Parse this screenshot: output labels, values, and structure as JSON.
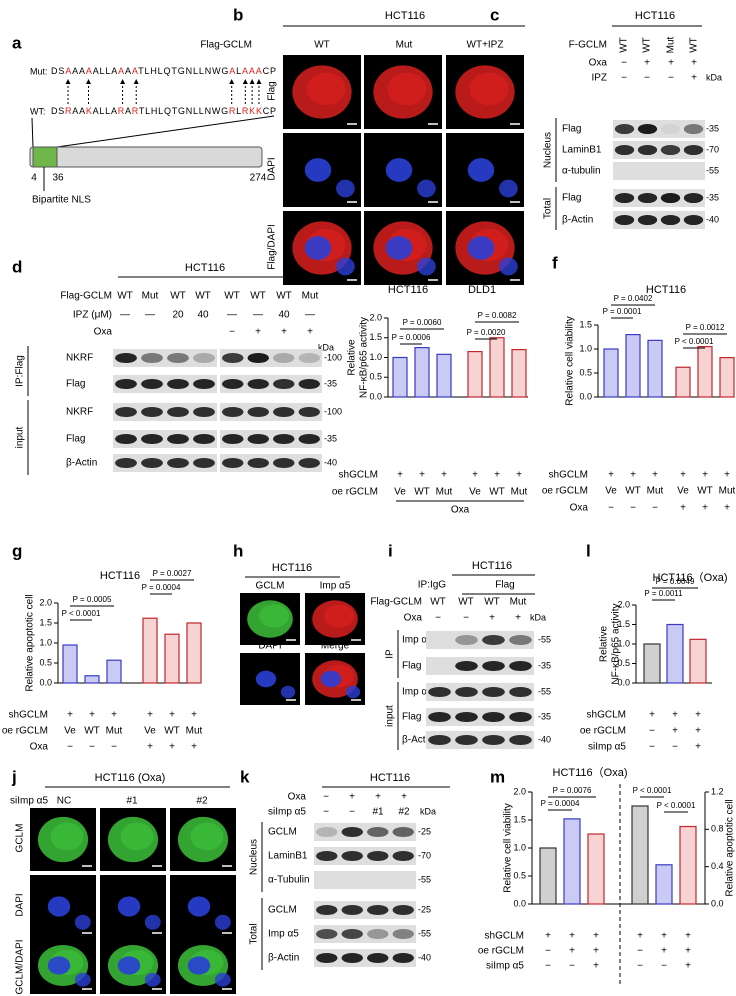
{
  "panel_labels": [
    "a",
    "b",
    "c",
    "d",
    "e",
    "f",
    "g",
    "h",
    "i",
    "l",
    "j",
    "k",
    "m"
  ],
  "a": {
    "mut_label": "Mut:",
    "mut_seq": "DSAAAAALLAAAATLHLQTGNLLNWGALAAACP",
    "wt_label": "WT:",
    "wt_seq": "DSRAAKALLARARTLHLQTGNLLNWGRLRKKCP",
    "positions": [
      "4",
      "36",
      "274"
    ],
    "caption": "Bipartite NLS"
  },
  "b": {
    "title": "HCT116",
    "row_label": "Flag-GCLM",
    "columns": [
      "WT",
      "Mut",
      "WT+IPZ"
    ],
    "rows": [
      "Flag",
      "DAPI",
      "Flag/DAPI"
    ]
  },
  "c": {
    "title": "HCT116",
    "kda": "kDa",
    "conditions": [
      {
        "label": "F-GCLM",
        "values": [
          "WT",
          "WT",
          "Mut",
          "WT"
        ]
      },
      {
        "label": "Oxa",
        "values": [
          "−",
          "+",
          "+",
          "+"
        ]
      },
      {
        "label": "IPZ",
        "values": [
          "−",
          "−",
          "−",
          "+"
        ]
      }
    ],
    "rows": [
      {
        "label": "Flag",
        "kda": "-35"
      },
      {
        "label": "LaminB1",
        "kda": "-70"
      },
      {
        "label": "α-tubulin",
        "kda": "-55"
      },
      {
        "label": "Flag",
        "kda": "-35"
      },
      {
        "label": "β-Actin",
        "kda": "-40"
      }
    ],
    "groups": [
      "Nucleus",
      "Total"
    ]
  },
  "d": {
    "title": "HCT116",
    "kda": "kDa",
    "conditions": [
      {
        "label": "Flag-GCLM",
        "values": [
          "WT",
          "Mut",
          "WT",
          "WT",
          "WT",
          "WT",
          "WT",
          "Mut"
        ]
      },
      {
        "label": "IPZ (μM)",
        "values": [
          "—",
          "—",
          "20",
          "40",
          "—",
          "—",
          "40",
          "—"
        ]
      },
      {
        "label": "Oxa",
        "values": [
          "",
          "",
          "",
          "",
          "−",
          "+",
          "+",
          "+"
        ]
      }
    ],
    "rows": [
      {
        "label": "NKRF",
        "kda": "-100"
      },
      {
        "label": "Flag",
        "kda": "-35"
      },
      {
        "label": "NKRF",
        "kda": "-100"
      },
      {
        "label": "Flag",
        "kda": "-35"
      },
      {
        "label": "β-Actin",
        "kda": "-40"
      }
    ],
    "groups": [
      "IP:Flag",
      "input"
    ]
  },
  "h": {
    "title": "HCT116",
    "images": [
      "GCLM",
      "Imp α5",
      "DAPI",
      "Merge"
    ]
  },
  "i": {
    "title": "HCT116",
    "ip_label": "IP:",
    "ip_groups": [
      "IgG",
      "Flag"
    ],
    "kda": "kDa",
    "conditions": [
      {
        "label": "Flag-GCLM",
        "values": [
          "WT",
          "WT",
          "WT",
          "Mut"
        ]
      },
      {
        "label": "Oxa",
        "values": [
          "−",
          "−",
          "+",
          "+"
        ]
      }
    ],
    "rows": [
      {
        "label": "Imp α5",
        "kda": "-55"
      },
      {
        "label": "Flag",
        "kda": "-35"
      },
      {
        "label": "Imp α5",
        "kda": "-55"
      },
      {
        "label": "Flag",
        "kda": "-35"
      },
      {
        "label": "β-Actin",
        "kda": "-40"
      }
    ],
    "groups": [
      "IP",
      "input"
    ]
  },
  "j": {
    "title": "HCT116 (Oxa)",
    "row_label": "siImp α5",
    "columns": [
      "NC",
      "#1",
      "#2"
    ],
    "rows": [
      "GCLM",
      "DAPI",
      "GCLM/DAPI"
    ]
  },
  "k": {
    "title": "HCT116",
    "kda": "kDa",
    "conditions": [
      {
        "label": "Oxa",
        "values": [
          "−",
          "+",
          "+",
          "+"
        ]
      },
      {
        "label": "siImp α5",
        "values": [
          "−",
          "−",
          "#1",
          "#2"
        ]
      }
    ],
    "rows": [
      {
        "label": "GCLM",
        "kda": "-25"
      },
      {
        "label": "LaminB1",
        "kda": "-70"
      },
      {
        "label": "α-Tubulin",
        "kda": "-55"
      },
      {
        "label": "GCLM",
        "kda": "-25"
      },
      {
        "label": "Imp α5",
        "kda": "-55"
      },
      {
        "label": "β-Actin",
        "kda": "-40"
      }
    ],
    "groups": [
      "Nucleus",
      "Total"
    ]
  },
  "chart_data": [
    {
      "type": "bar",
      "group_titles": [
        "HCT116",
        "DLD1"
      ],
      "ylabel": [
        "Relative",
        "NF-κB/p65 activity"
      ],
      "values": [
        1.0,
        1.25,
        1.08,
        1.15,
        1.5,
        1.2
      ],
      "colors": [
        "#c9cbf4",
        "#c9cbf4",
        "#c9cbf4",
        "#f8d3d3",
        "#f8d3d3",
        "#f8d3d3"
      ],
      "edge_colors": [
        "#3a3ac4",
        "#3a3ac4",
        "#3a3ac4",
        "#c1272d",
        "#c1272d",
        "#c1272d"
      ],
      "ylim": [
        0,
        2
      ],
      "yticks": [
        {
          "value": 0,
          "label": "0.0"
        },
        0.5,
        {
          "value": 1,
          "label": "1.0"
        },
        1.5,
        {
          "value": 2,
          "label": "2.0"
        }
      ],
      "annotations": [
        "P = 0.0006",
        "P = 0.0060",
        "P = 0.0020",
        "P = 0.0082"
      ],
      "conditions": [
        {
          "label": "shGCLM",
          "values": [
            "+",
            "+",
            "+",
            "+",
            "+",
            "+"
          ]
        },
        {
          "label": "oe rGCLM",
          "values": [
            "Ve",
            "WT",
            "Mut",
            "Ve",
            "WT",
            "Mut"
          ]
        }
      ],
      "footnote": "Oxa"
    },
    {
      "type": "bar",
      "title": "HCT116",
      "ylabel": [
        "Relative cell viability"
      ],
      "values": [
        1.0,
        1.3,
        1.18,
        0.62,
        1.05,
        0.82
      ],
      "colors": [
        "#c9cbf4",
        "#c9cbf4",
        "#c9cbf4",
        "#f8d3d3",
        "#f8d3d3",
        "#f8d3d3"
      ],
      "edge_colors": [
        "#3a3ac4",
        "#3a3ac4",
        "#3a3ac4",
        "#c1272d",
        "#c1272d",
        "#c1272d"
      ],
      "ylim": [
        0,
        1.5
      ],
      "yticks": [
        {
          "value": 0,
          "label": "0.0"
        },
        0.5,
        {
          "value": 1,
          "label": "1.0"
        },
        1.5
      ],
      "annotations": [
        "P = 0.0001",
        "P = 0.0402",
        "P < 0.0001",
        "P = 0.0012"
      ],
      "conditions": [
        {
          "label": "shGCLM",
          "values": [
            "+",
            "+",
            "+",
            "+",
            "+",
            "+"
          ]
        },
        {
          "label": "oe rGCLM",
          "values": [
            "Ve",
            "WT",
            "Mut",
            "Ve",
            "WT",
            "Mut"
          ]
        },
        {
          "label": "Oxa",
          "values": [
            "−",
            "−",
            "−",
            "+",
            "+",
            "+"
          ]
        }
      ]
    },
    {
      "type": "bar",
      "title": "HCT116",
      "ylabel": [
        "Relative apoptotic cell"
      ],
      "values": [
        0.95,
        0.18,
        0.57,
        1.62,
        1.22,
        1.5
      ],
      "colors": [
        "#c9cbf4",
        "#c9cbf4",
        "#c9cbf4",
        "#f8d3d3",
        "#f8d3d3",
        "#f8d3d3"
      ],
      "edge_colors": [
        "#3a3ac4",
        "#3a3ac4",
        "#3a3ac4",
        "#c1272d",
        "#c1272d",
        "#c1272d"
      ],
      "ylim": [
        0,
        2
      ],
      "yticks": [
        {
          "value": 0,
          "label": "0.0"
        },
        0.5,
        {
          "value": 1,
          "label": "1.0"
        },
        1.5,
        {
          "value": 2,
          "label": "2.0"
        }
      ],
      "annotations": [
        "P < 0.0001",
        "P = 0.0005",
        "P = 0.0004",
        "P = 0.0027"
      ],
      "conditions": [
        {
          "label": "shGCLM",
          "values": [
            "+",
            "+",
            "+",
            "+",
            "+",
            "+"
          ]
        },
        {
          "label": "oe rGCLM",
          "values": [
            "Ve",
            "WT",
            "Mut",
            "Ve",
            "WT",
            "Mut"
          ]
        },
        {
          "label": "Oxa",
          "values": [
            "−",
            "−",
            "−",
            "+",
            "+",
            "+"
          ]
        }
      ]
    },
    {
      "type": "bar",
      "title": "HCT116（Oxa)",
      "ylabel": [
        "Relative",
        "NF-κB/p65 activity"
      ],
      "values": [
        1.0,
        1.5,
        1.12
      ],
      "colors": [
        "#d0d0d0",
        "#c9cbf4",
        "#f8d3d3"
      ],
      "edge_colors": [
        "#333333",
        "#3a3ac4",
        "#c1272d"
      ],
      "ylim": [
        0,
        2
      ],
      "yticks": [
        {
          "value": 0,
          "label": "0.0"
        },
        0.5,
        {
          "value": 1,
          "label": "1.0"
        },
        1.5,
        {
          "value": 2,
          "label": "2.0"
        }
      ],
      "annotations": [
        "P = 0.0011",
        "P = 0.0049"
      ],
      "conditions": [
        {
          "label": "shGCLM",
          "values": [
            "+",
            "+",
            "+"
          ]
        },
        {
          "label": "oe rGCLM",
          "values": [
            "−",
            "+",
            "+"
          ]
        },
        {
          "label": "siImp α5",
          "values": [
            "−",
            "−",
            "+"
          ]
        }
      ]
    },
    {
      "type": "bar",
      "title": "HCT116（Oxa)",
      "ylabel": [
        "Relative cell viability"
      ],
      "y2label": [
        "Relative apoptotic cell"
      ],
      "series": [
        {
          "values": [
            1.0,
            1.52,
            1.25
          ]
        },
        {
          "values": [
            1.05,
            0.42,
            0.83
          ],
          "axis": "y2"
        }
      ],
      "colors": [
        "#d0d0d0",
        "#c9cbf4",
        "#f8d3d3"
      ],
      "edge_colors": [
        "#333333",
        "#3a3ac4",
        "#c1272d"
      ],
      "ylim": [
        0,
        2
      ],
      "yticks": [
        {
          "value": 0,
          "label": "0.0"
        },
        0.5,
        {
          "value": 1,
          "label": "1.0"
        },
        1.5,
        {
          "value": 2,
          "label": "2.0"
        }
      ],
      "y2lim": [
        0,
        1.2
      ],
      "y2ticks": [
        {
          "value": 0,
          "label": "0.0"
        },
        0.4,
        0.8,
        1.2
      ],
      "annotations": [
        "P = 0.0004",
        "P = 0.0076",
        "P < 0.0001",
        "P < 0.0001"
      ],
      "conditions": [
        {
          "label": "shGCLM",
          "values": [
            "+",
            "+",
            "+",
            "+",
            "+",
            "+"
          ]
        },
        {
          "label": "oe rGCLM",
          "values": [
            "−",
            "+",
            "+",
            "−",
            "+",
            "+"
          ]
        },
        {
          "label": "siImp α5",
          "values": [
            "−",
            "−",
            "+",
            "−",
            "−",
            "+"
          ]
        }
      ]
    }
  ]
}
